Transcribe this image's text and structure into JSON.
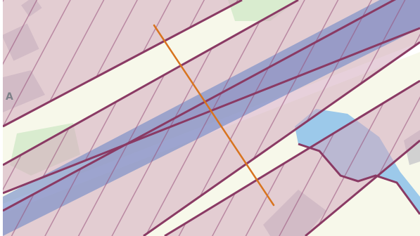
{
  "map": {
    "type": "zoning-overlay-map",
    "partial_label": "A",
    "colors": {
      "base": "#f7f8ea",
      "green_area": "#d9eccf",
      "building": "#d1d1d1",
      "road": "#ffffff",
      "water": "#9cc9ea",
      "zone_fill": "#d4a9bd",
      "zone_blue": "#6d87c7",
      "zone_border": "#8a3a64",
      "hatch": "#96507a",
      "measure_line": "#d8741f"
    },
    "layers": [
      {
        "name": "basemap"
      },
      {
        "name": "waterway"
      },
      {
        "name": "zoning-bands"
      },
      {
        "name": "blue-corridor"
      },
      {
        "name": "hatching"
      },
      {
        "name": "measure-line"
      }
    ]
  }
}
